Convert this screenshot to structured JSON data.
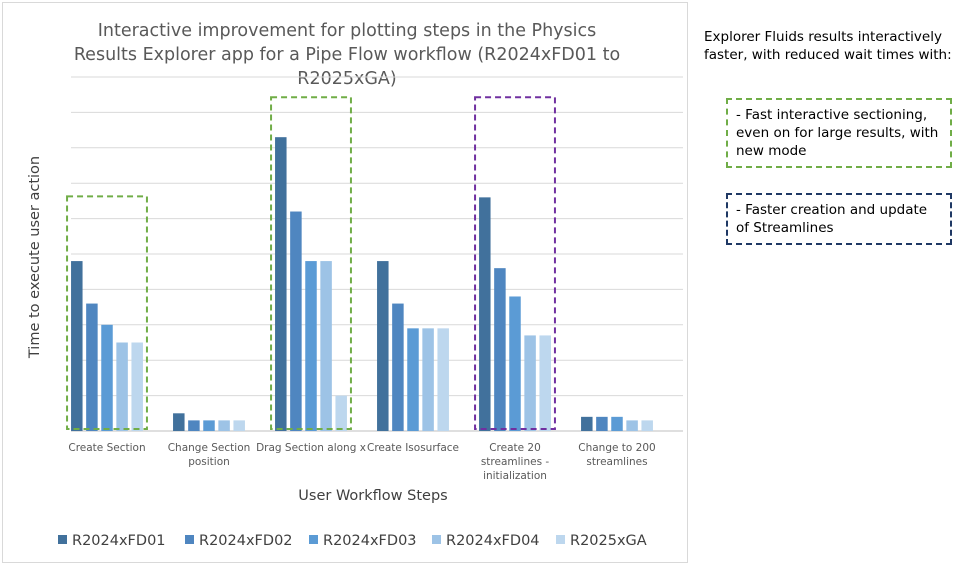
{
  "chart_data": {
    "type": "bar",
    "title_lines": [
      "Interactive improvement for plotting steps in the Physics",
      "Results Explorer app for a Pipe Flow workflow (R2024xFD01 to",
      "R2025xGA)"
    ],
    "xlabel": "User Workflow Steps",
    "ylabel": "Time to execute user action",
    "categories": [
      [
        "Create Section"
      ],
      [
        "Change Section",
        "position"
      ],
      [
        "Drag Section along x"
      ],
      [
        "Create Isosurface"
      ],
      [
        "Create 20",
        "streamlines -",
        "initialization"
      ],
      [
        "Change to 200",
        "streamlines"
      ]
    ],
    "ylim": [
      0,
      10
    ],
    "gridlines": 10,
    "series": [
      {
        "name": "R2024xFD01",
        "color": "#41719c",
        "values": [
          4.8,
          0.5,
          8.3,
          4.8,
          6.6,
          0.4
        ]
      },
      {
        "name": "R2024xFD02",
        "color": "#4f86c0",
        "values": [
          3.6,
          0.3,
          6.2,
          3.6,
          4.6,
          0.4
        ]
      },
      {
        "name": "R2024xFD03",
        "color": "#5b9bd5",
        "values": [
          3.0,
          0.3,
          4.8,
          2.9,
          3.8,
          0.4
        ]
      },
      {
        "name": "R2024xFD04",
        "color": "#9dc3e6",
        "values": [
          2.5,
          0.3,
          4.8,
          2.9,
          2.7,
          0.3
        ]
      },
      {
        "name": "R2025xGA",
        "color": "#bdd7ee",
        "values": [
          2.5,
          0.3,
          1.0,
          2.9,
          2.7,
          0.3
        ]
      }
    ],
    "highlights": [
      {
        "category_index": 0,
        "color": "#70ad47",
        "top_value": 6.6
      },
      {
        "category_index": 2,
        "color": "#70ad47",
        "top_value": 9.4
      },
      {
        "category_index": 4,
        "color": "#7030a0",
        "top_value": 9.4
      }
    ],
    "legend_position": "bottom",
    "grid": true
  },
  "notes": {
    "intro": "Explorer Fluids results interactively faster, with reduced wait times with:",
    "box1": "- Fast interactive sectioning, even on for large results, with new mode",
    "box2": "- Faster creation and update of Streamlines"
  }
}
